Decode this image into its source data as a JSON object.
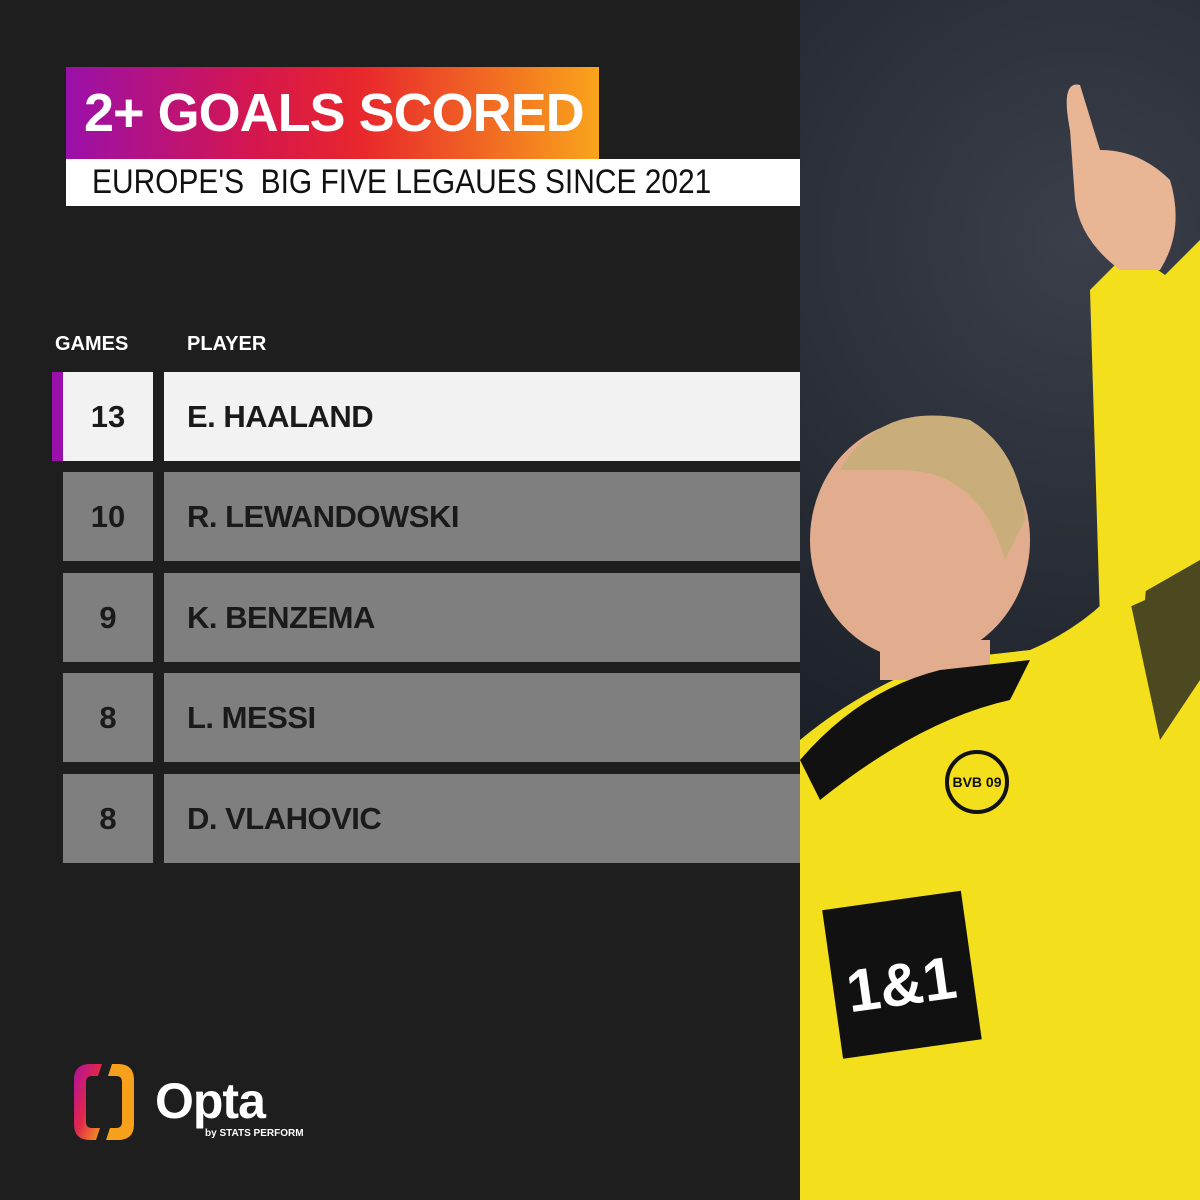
{
  "title": "2+ GOALS SCORED",
  "subtitle": "EUROPE'S  BIG FIVE LEGAUES SINCE 2021",
  "columns": {
    "games": "GAMES",
    "player": "PLAYER"
  },
  "rows": [
    {
      "games": "13",
      "player": "E. HAALAND",
      "highlight": true
    },
    {
      "games": "10",
      "player": "R. LEWANDOWSKI"
    },
    {
      "games": "9",
      "player": "K. BENZEMA"
    },
    {
      "games": "8",
      "player": "L. MESSI"
    },
    {
      "games": "8",
      "player": "D. VLAHOVIC"
    }
  ],
  "brand": {
    "name": "Opta",
    "tagline": "by STATS PERFORM"
  },
  "photo": {
    "sponsor": "1&1",
    "badge": "BVB 09"
  },
  "colors": {
    "background": "#1e1e1e",
    "highlight_row": "#f2f2f2",
    "row": "#7f7f7f",
    "accent": "#9a10aa",
    "gradient": [
      "#9a10aa",
      "#e8262c",
      "#f9a41b"
    ],
    "jersey": "#f5e21a"
  }
}
